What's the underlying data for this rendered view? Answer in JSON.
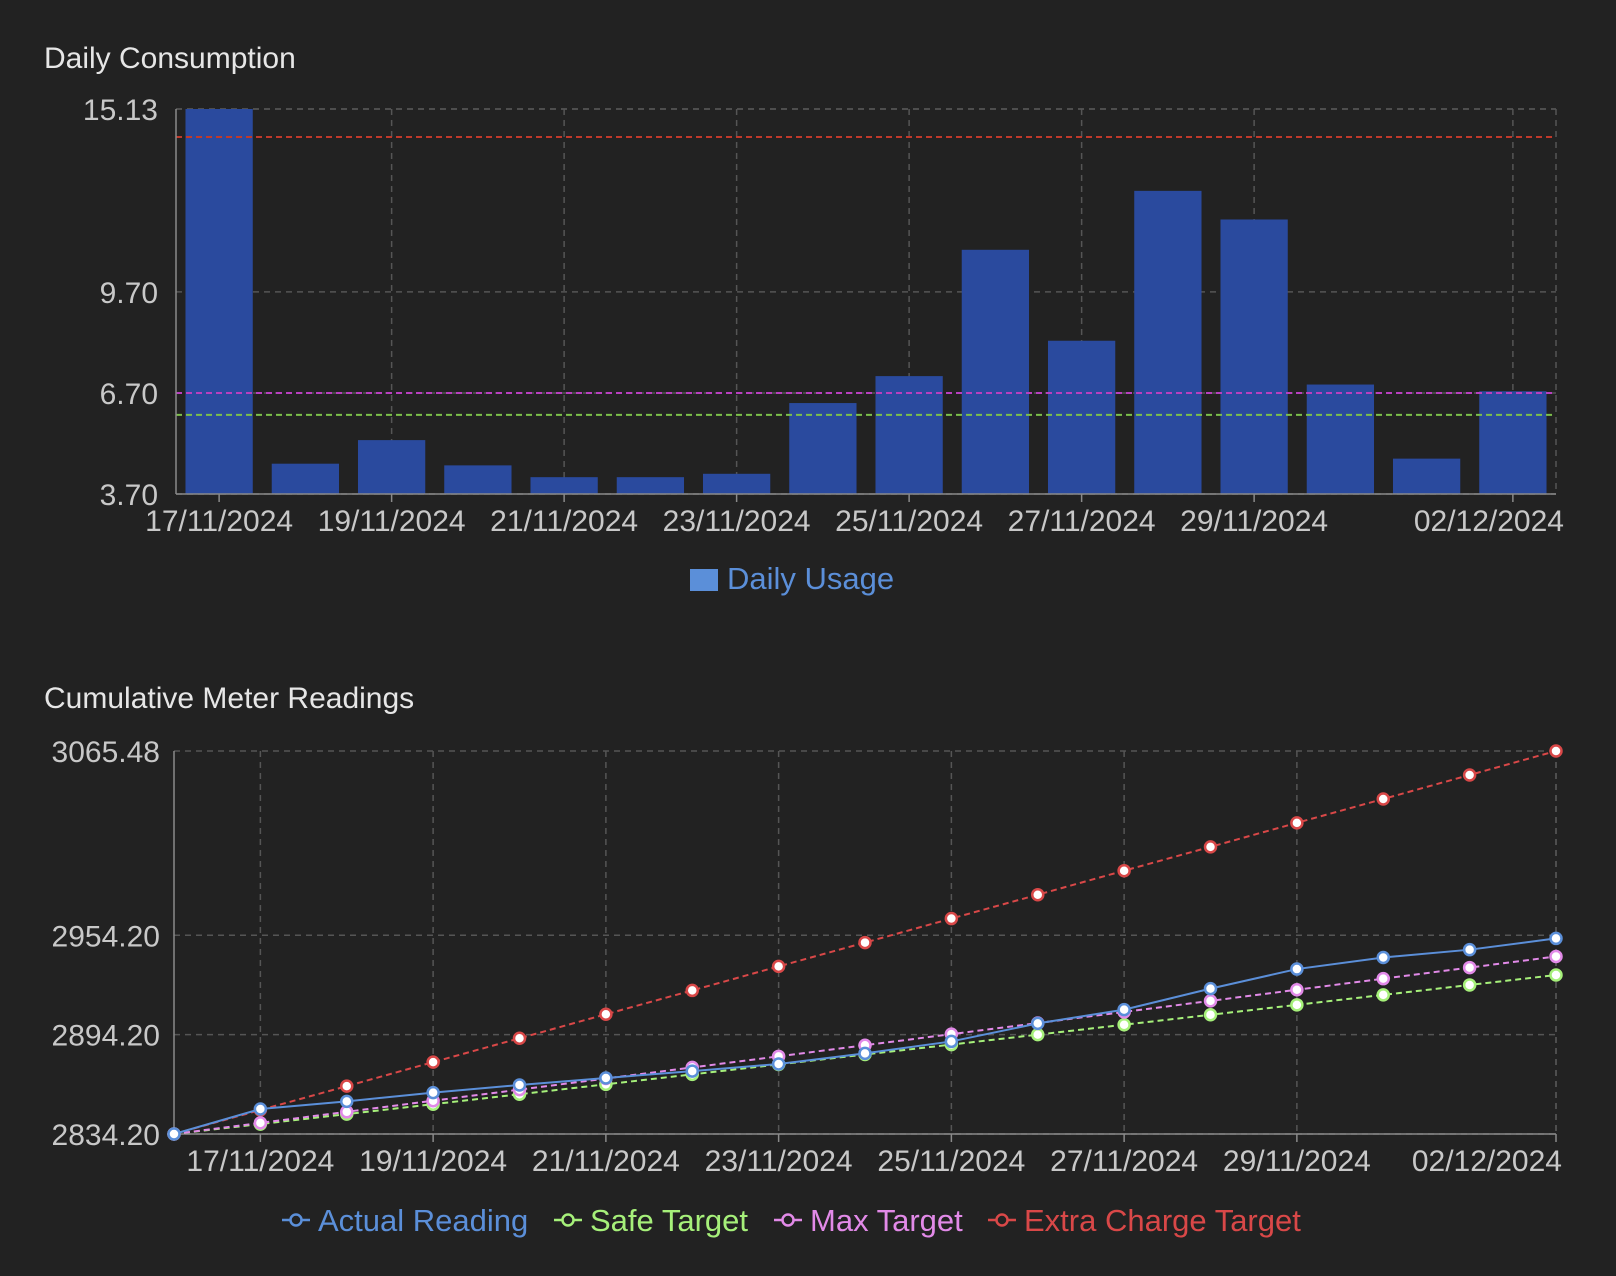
{
  "chart_data": [
    {
      "type": "bar",
      "title": "Daily Consumption",
      "categories": [
        "17/11/2024",
        "18/11/2024",
        "19/11/2024",
        "20/11/2024",
        "21/11/2024",
        "22/11/2024",
        "23/11/2024",
        "24/11/2024",
        "25/11/2024",
        "26/11/2024",
        "27/11/2024",
        "28/11/2024",
        "29/11/2024",
        "30/11/2024",
        "01/12/2024",
        "02/12/2024"
      ],
      "x_tick_labels": [
        "17/11/2024",
        "19/11/2024",
        "21/11/2024",
        "23/11/2024",
        "25/11/2024",
        "27/11/2024",
        "29/11/2024",
        "02/12/2024"
      ],
      "y_ticks": [
        "3.70",
        "6.70",
        "9.70",
        "15.13"
      ],
      "ylim": [
        3.7,
        15.13
      ],
      "series": [
        {
          "name": "Daily Usage",
          "color": "#2a4a9e",
          "legend_color": "#5b8fd9",
          "values": [
            15.13,
            4.6,
            5.3,
            4.55,
            4.2,
            4.2,
            4.3,
            6.4,
            7.2,
            10.95,
            8.25,
            12.7,
            11.85,
            6.95,
            4.75,
            6.75
          ]
        }
      ],
      "reference_lines": [
        {
          "value": 14.3,
          "color": "#c0392b",
          "style": "dashed"
        },
        {
          "value": 6.7,
          "color": "#b93fc0",
          "style": "dashed"
        },
        {
          "value": 6.05,
          "color": "#7cc04a",
          "style": "dashed"
        }
      ],
      "grid": true,
      "legend_position": "bottom"
    },
    {
      "type": "line",
      "title": "Cumulative Meter Readings",
      "x": [
        "16/11/2024",
        "17/11/2024",
        "18/11/2024",
        "19/11/2024",
        "20/11/2024",
        "21/11/2024",
        "22/11/2024",
        "23/11/2024",
        "24/11/2024",
        "25/11/2024",
        "26/11/2024",
        "27/11/2024",
        "28/11/2024",
        "29/11/2024",
        "30/11/2024",
        "01/12/2024",
        "02/12/2024"
      ],
      "x_tick_labels": [
        "17/11/2024",
        "19/11/2024",
        "21/11/2024",
        "23/11/2024",
        "25/11/2024",
        "27/11/2024",
        "29/11/2024",
        "02/12/2024"
      ],
      "y_ticks": [
        "2834.20",
        "2894.20",
        "2954.20",
        "3065.48"
      ],
      "ylim": [
        2834.2,
        3065.48
      ],
      "series": [
        {
          "name": "Actual Reading",
          "color": "#5b8fd9",
          "dashed": false,
          "values": [
            2834.2,
            2849.3,
            2853.9,
            2859.2,
            2863.8,
            2868.0,
            2872.2,
            2876.5,
            2882.9,
            2890.1,
            2901.0,
            2909.3,
            2922.0,
            2933.8,
            2940.8,
            2945.5,
            2952.3
          ]
        },
        {
          "name": "Safe Target",
          "color": "#a6f07a",
          "dashed": true,
          "values": [
            2834.2,
            2840.2,
            2846.2,
            2852.2,
            2858.2,
            2864.2,
            2870.2,
            2876.2,
            2882.2,
            2888.2,
            2894.2,
            2900.2,
            2906.2,
            2912.2,
            2918.2,
            2924.2,
            2930.2
          ]
        },
        {
          "name": "Max Target",
          "color": "#e28ae8",
          "dashed": true,
          "values": [
            2834.2,
            2840.9,
            2847.6,
            2854.3,
            2861.0,
            2867.7,
            2874.4,
            2881.1,
            2887.8,
            2894.5,
            2901.2,
            2907.9,
            2914.6,
            2921.3,
            2928.0,
            2934.7,
            2941.4
          ]
        },
        {
          "name": "Extra Charge Target",
          "color": "#d94848",
          "dashed": true,
          "values": [
            2834.2,
            2848.7,
            2863.1,
            2877.6,
            2892.0,
            2906.5,
            2920.9,
            2935.4,
            2949.8,
            2964.3,
            2978.7,
            2993.2,
            3007.6,
            3022.1,
            3036.5,
            3051.0,
            3065.48
          ]
        }
      ],
      "grid": true,
      "legend_position": "bottom"
    }
  ]
}
